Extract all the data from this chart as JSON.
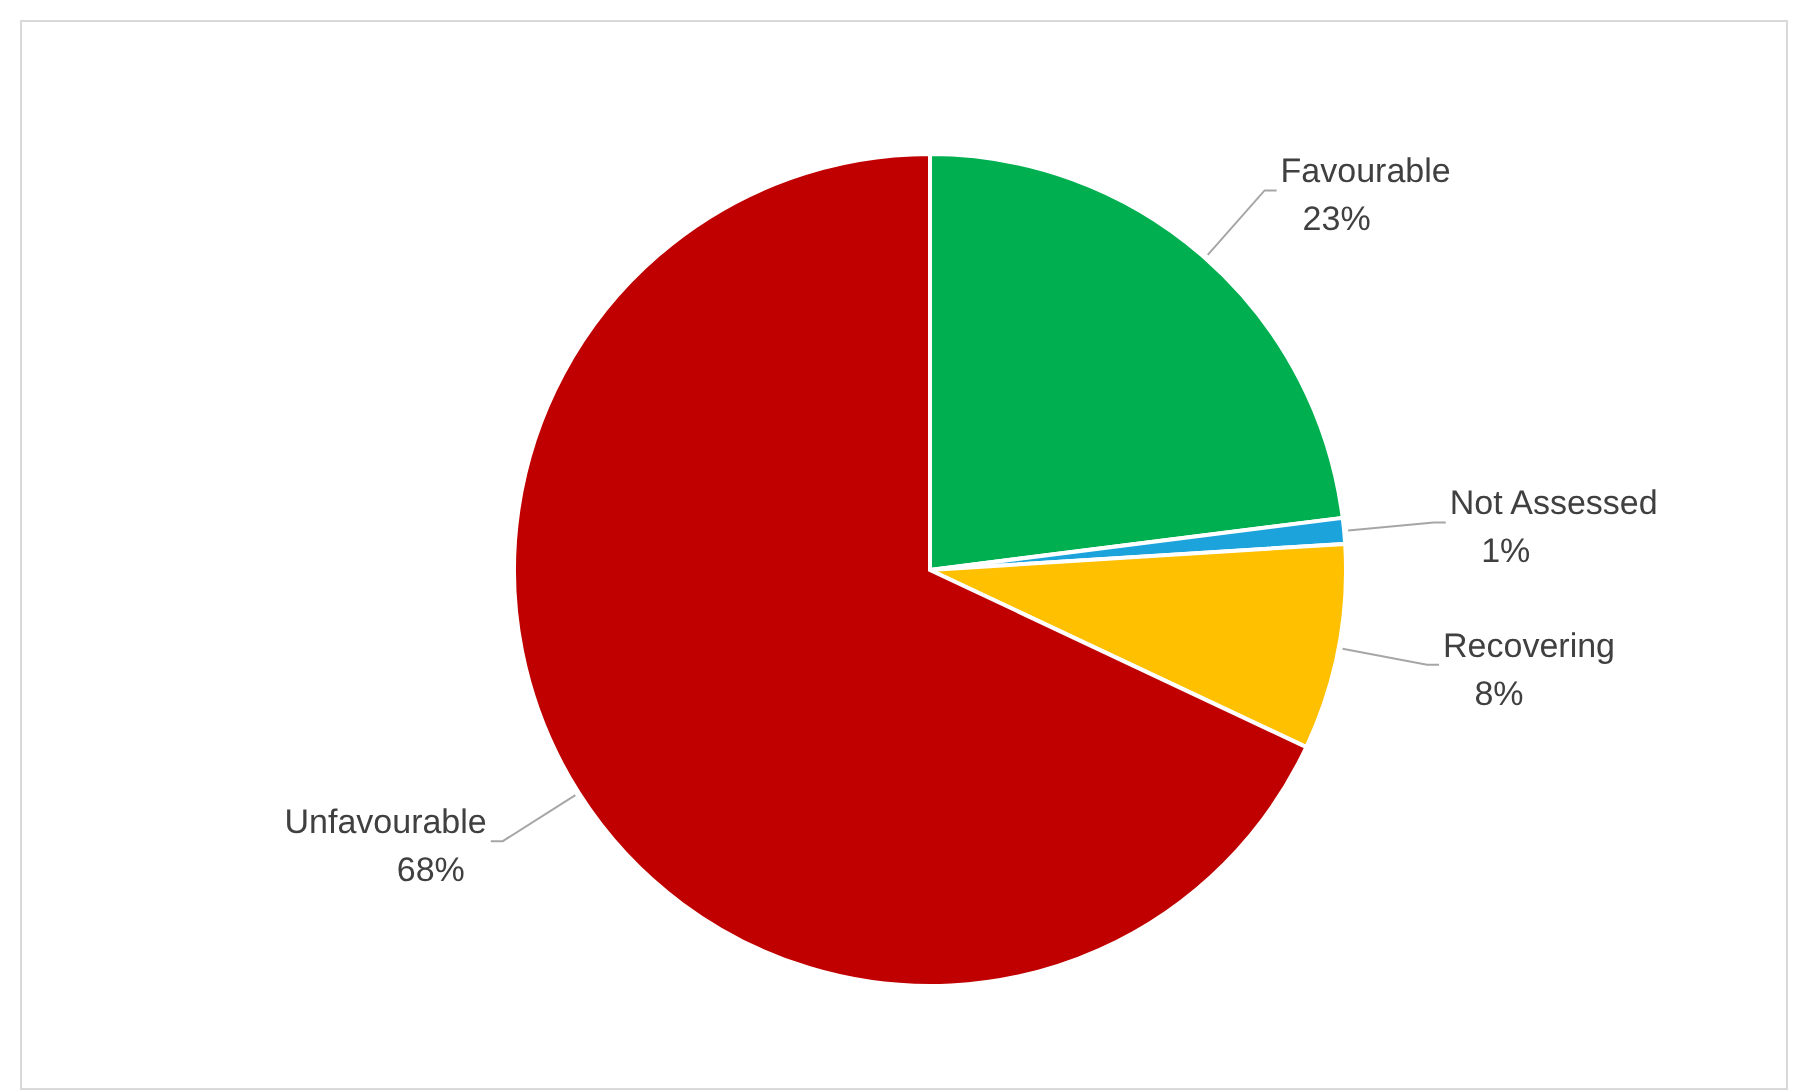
{
  "chart_data": {
    "type": "pie",
    "categories": [
      "Favourable",
      "Not Assessed",
      "Recovering",
      "Unfavourable"
    ],
    "values": [
      23,
      1,
      8,
      68
    ],
    "colors": [
      "#00b050",
      "#1ca3dc",
      "#ffc000",
      "#c00000"
    ],
    "value_labels": [
      "23%",
      "1%",
      "8%",
      "68%"
    ],
    "legend": false
  }
}
